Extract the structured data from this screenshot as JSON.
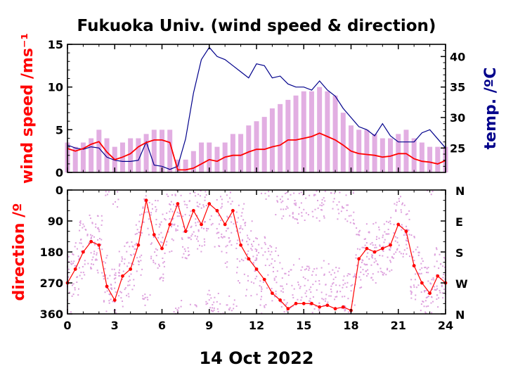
{
  "title": "Fukuoka Univ. (wind speed & direction)",
  "date_label": "14 Oct 2022",
  "colors": {
    "mean": "#ff0000",
    "range": "#dda0dd",
    "temp": "#00008b",
    "axis": "#000000"
  },
  "chart_data": [
    {
      "type": "line",
      "ylabel": "wind speed /ms⁻¹",
      "y2label": "temp. /ºC",
      "xlim": [
        0,
        24
      ],
      "ylim": [
        0,
        15
      ],
      "y2lim": [
        21,
        42
      ],
      "x_ticks": [
        "0",
        "3",
        "6",
        "9",
        "12",
        "15",
        "18",
        "21",
        "24"
      ],
      "y_ticks": [
        "0",
        "5",
        "10",
        "15"
      ],
      "y2_ticks": [
        "25",
        "30",
        "35",
        "40"
      ],
      "x": [
        0,
        0.5,
        1,
        1.5,
        2,
        2.5,
        3,
        3.5,
        4,
        4.5,
        5,
        5.5,
        6,
        6.5,
        7,
        7.5,
        8,
        8.5,
        9,
        9.5,
        10,
        10.5,
        11,
        11.5,
        12,
        12.5,
        13,
        13.5,
        14,
        14.5,
        15,
        15.5,
        16,
        16.5,
        17,
        17.5,
        18,
        18.5,
        19,
        19.5,
        20,
        20.5,
        21,
        21.5,
        22,
        22.5,
        23,
        23.5,
        24
      ],
      "series": [
        {
          "kind": "gust_range",
          "values": [
            3.5,
            3,
            3.5,
            4,
            5,
            4,
            3,
            3.5,
            4,
            4,
            4.5,
            5,
            5,
            5,
            1.5,
            1.5,
            2.5,
            3.5,
            3.5,
            3,
            3.5,
            4.5,
            4.5,
            5.5,
            6,
            6.5,
            7.5,
            8,
            8.5,
            9,
            9.5,
            9.5,
            10,
            9.5,
            9,
            7,
            5.5,
            5,
            5,
            4.5,
            4,
            4,
            4.5,
            5,
            4,
            3.5,
            3,
            3,
            3
          ]
        },
        {
          "kind": "mean_speed",
          "values": [
            2.8,
            2.5,
            2.8,
            3.3,
            3.6,
            2.4,
            1.5,
            1.8,
            2.2,
            3.0,
            3.5,
            3.8,
            3.8,
            3.5,
            0.3,
            0.3,
            0.5,
            1.0,
            1.5,
            1.3,
            1.8,
            2.0,
            2.0,
            2.4,
            2.7,
            2.7,
            3.0,
            3.2,
            3.8,
            3.8,
            4.0,
            4.2,
            4.6,
            4.2,
            3.8,
            3.2,
            2.5,
            2.2,
            2.1,
            2.0,
            1.8,
            1.9,
            2.2,
            2.2,
            1.6,
            1.3,
            1.2,
            1.0,
            1.4
          ]
        },
        {
          "kind": "temperature",
          "values": [
            25.5,
            25.0,
            24.8,
            25.2,
            25.0,
            23.5,
            23.0,
            22.8,
            22.8,
            23.0,
            26.0,
            22.2,
            22.0,
            21.5,
            22.0,
            26.5,
            34.0,
            39.5,
            41.5,
            40.0,
            39.5,
            38.5,
            37.5,
            36.5,
            38.8,
            38.5,
            36.5,
            36.8,
            35.5,
            35.0,
            35.0,
            34.5,
            36.0,
            34.5,
            33.5,
            31.5,
            30.0,
            28.5,
            28.0,
            27.0,
            29.0,
            27.0,
            26.0,
            26.0,
            26.0,
            27.5,
            28.0,
            26.5,
            25.0
          ]
        }
      ]
    },
    {
      "type": "scatter",
      "ylabel": "direction /º",
      "xlim": [
        0,
        24
      ],
      "ylim": [
        0,
        360
      ],
      "x_ticks": [
        "0",
        "3",
        "6",
        "9",
        "12",
        "15",
        "18",
        "21",
        "24"
      ],
      "y_ticks": [
        "0",
        "90",
        "180",
        "270",
        "360"
      ],
      "y2_ticks": [
        "N",
        "E",
        "S",
        "W",
        "N"
      ],
      "x": [
        0,
        0.5,
        1,
        1.5,
        2,
        2.5,
        3,
        3.5,
        4,
        4.5,
        5,
        5.5,
        6,
        6.5,
        7,
        7.5,
        8,
        8.5,
        9,
        9.5,
        10,
        10.5,
        11,
        11.5,
        12,
        12.5,
        13,
        13.5,
        14,
        14.5,
        15,
        15.5,
        16,
        16.5,
        17,
        17.5,
        18,
        18.5,
        19,
        19.5,
        20,
        20.5,
        21,
        21.5,
        22,
        22.5,
        23,
        23.5,
        24
      ],
      "series": [
        {
          "kind": "mean_direction",
          "values": [
            270,
            230,
            180,
            150,
            160,
            280,
            320,
            250,
            230,
            160,
            30,
            130,
            170,
            100,
            40,
            120,
            60,
            100,
            40,
            60,
            100,
            60,
            160,
            200,
            230,
            260,
            300,
            320,
            345,
            330,
            330,
            330,
            340,
            335,
            345,
            340,
            350,
            200,
            170,
            180,
            170,
            160,
            100,
            120,
            220,
            270,
            300,
            250,
            270
          ]
        },
        {
          "kind": "direction_spread",
          "values": [
            90,
            80,
            90,
            80,
            90,
            100,
            90,
            100,
            80,
            90,
            110,
            100,
            100,
            90,
            80,
            90,
            90,
            100,
            110,
            120,
            130,
            120,
            120,
            110,
            120,
            130,
            140,
            130,
            120,
            130,
            120,
            110,
            120,
            130,
            120,
            110,
            110,
            90,
            80,
            90,
            80,
            80,
            90,
            90,
            100,
            90,
            80,
            90,
            80
          ]
        }
      ]
    }
  ]
}
